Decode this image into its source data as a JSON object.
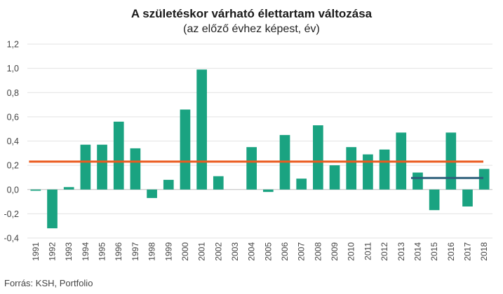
{
  "title": "A születéskor várható élettartam változása",
  "subtitle": "(az előző évhez képest, év)",
  "source": "Forrás: KSH, Portfolio",
  "chart_data": {
    "type": "bar",
    "categories": [
      "1991",
      "1992",
      "1993",
      "1994",
      "1995",
      "1996",
      "1997",
      "1998",
      "1999",
      "2000",
      "2001",
      "2002",
      "2003",
      "2004",
      "2005",
      "2006",
      "2007",
      "2008",
      "2009",
      "2010",
      "2011",
      "2012",
      "2013",
      "2014",
      "2015",
      "2016",
      "2017",
      "2018"
    ],
    "values": [
      -0.01,
      -0.32,
      0.02,
      0.37,
      0.37,
      0.56,
      0.34,
      -0.07,
      0.08,
      0.66,
      0.99,
      0.11,
      0.0,
      0.35,
      -0.02,
      0.45,
      0.09,
      0.53,
      0.2,
      0.35,
      0.29,
      0.33,
      0.47,
      0.14,
      -0.17,
      0.47,
      -0.14,
      0.17
    ],
    "ylim": [
      -0.4,
      1.2
    ],
    "yticks": [
      -0.4,
      -0.2,
      0.0,
      0.2,
      0.4,
      0.6,
      0.8,
      1.0,
      1.2
    ],
    "ytick_labels": [
      "-0,4",
      "-0,2",
      "0,0",
      "0,2",
      "0,4",
      "0,6",
      "0,8",
      "1,0",
      "1,2"
    ],
    "grid": true,
    "bar_color": "#1aa381",
    "reference_lines": [
      {
        "value": 0.23,
        "from": "1991",
        "to": "2018",
        "color": "#ea5a1e"
      },
      {
        "value": 0.095,
        "from": "2014",
        "to": "2018",
        "color": "#2d5f7a"
      }
    ]
  }
}
